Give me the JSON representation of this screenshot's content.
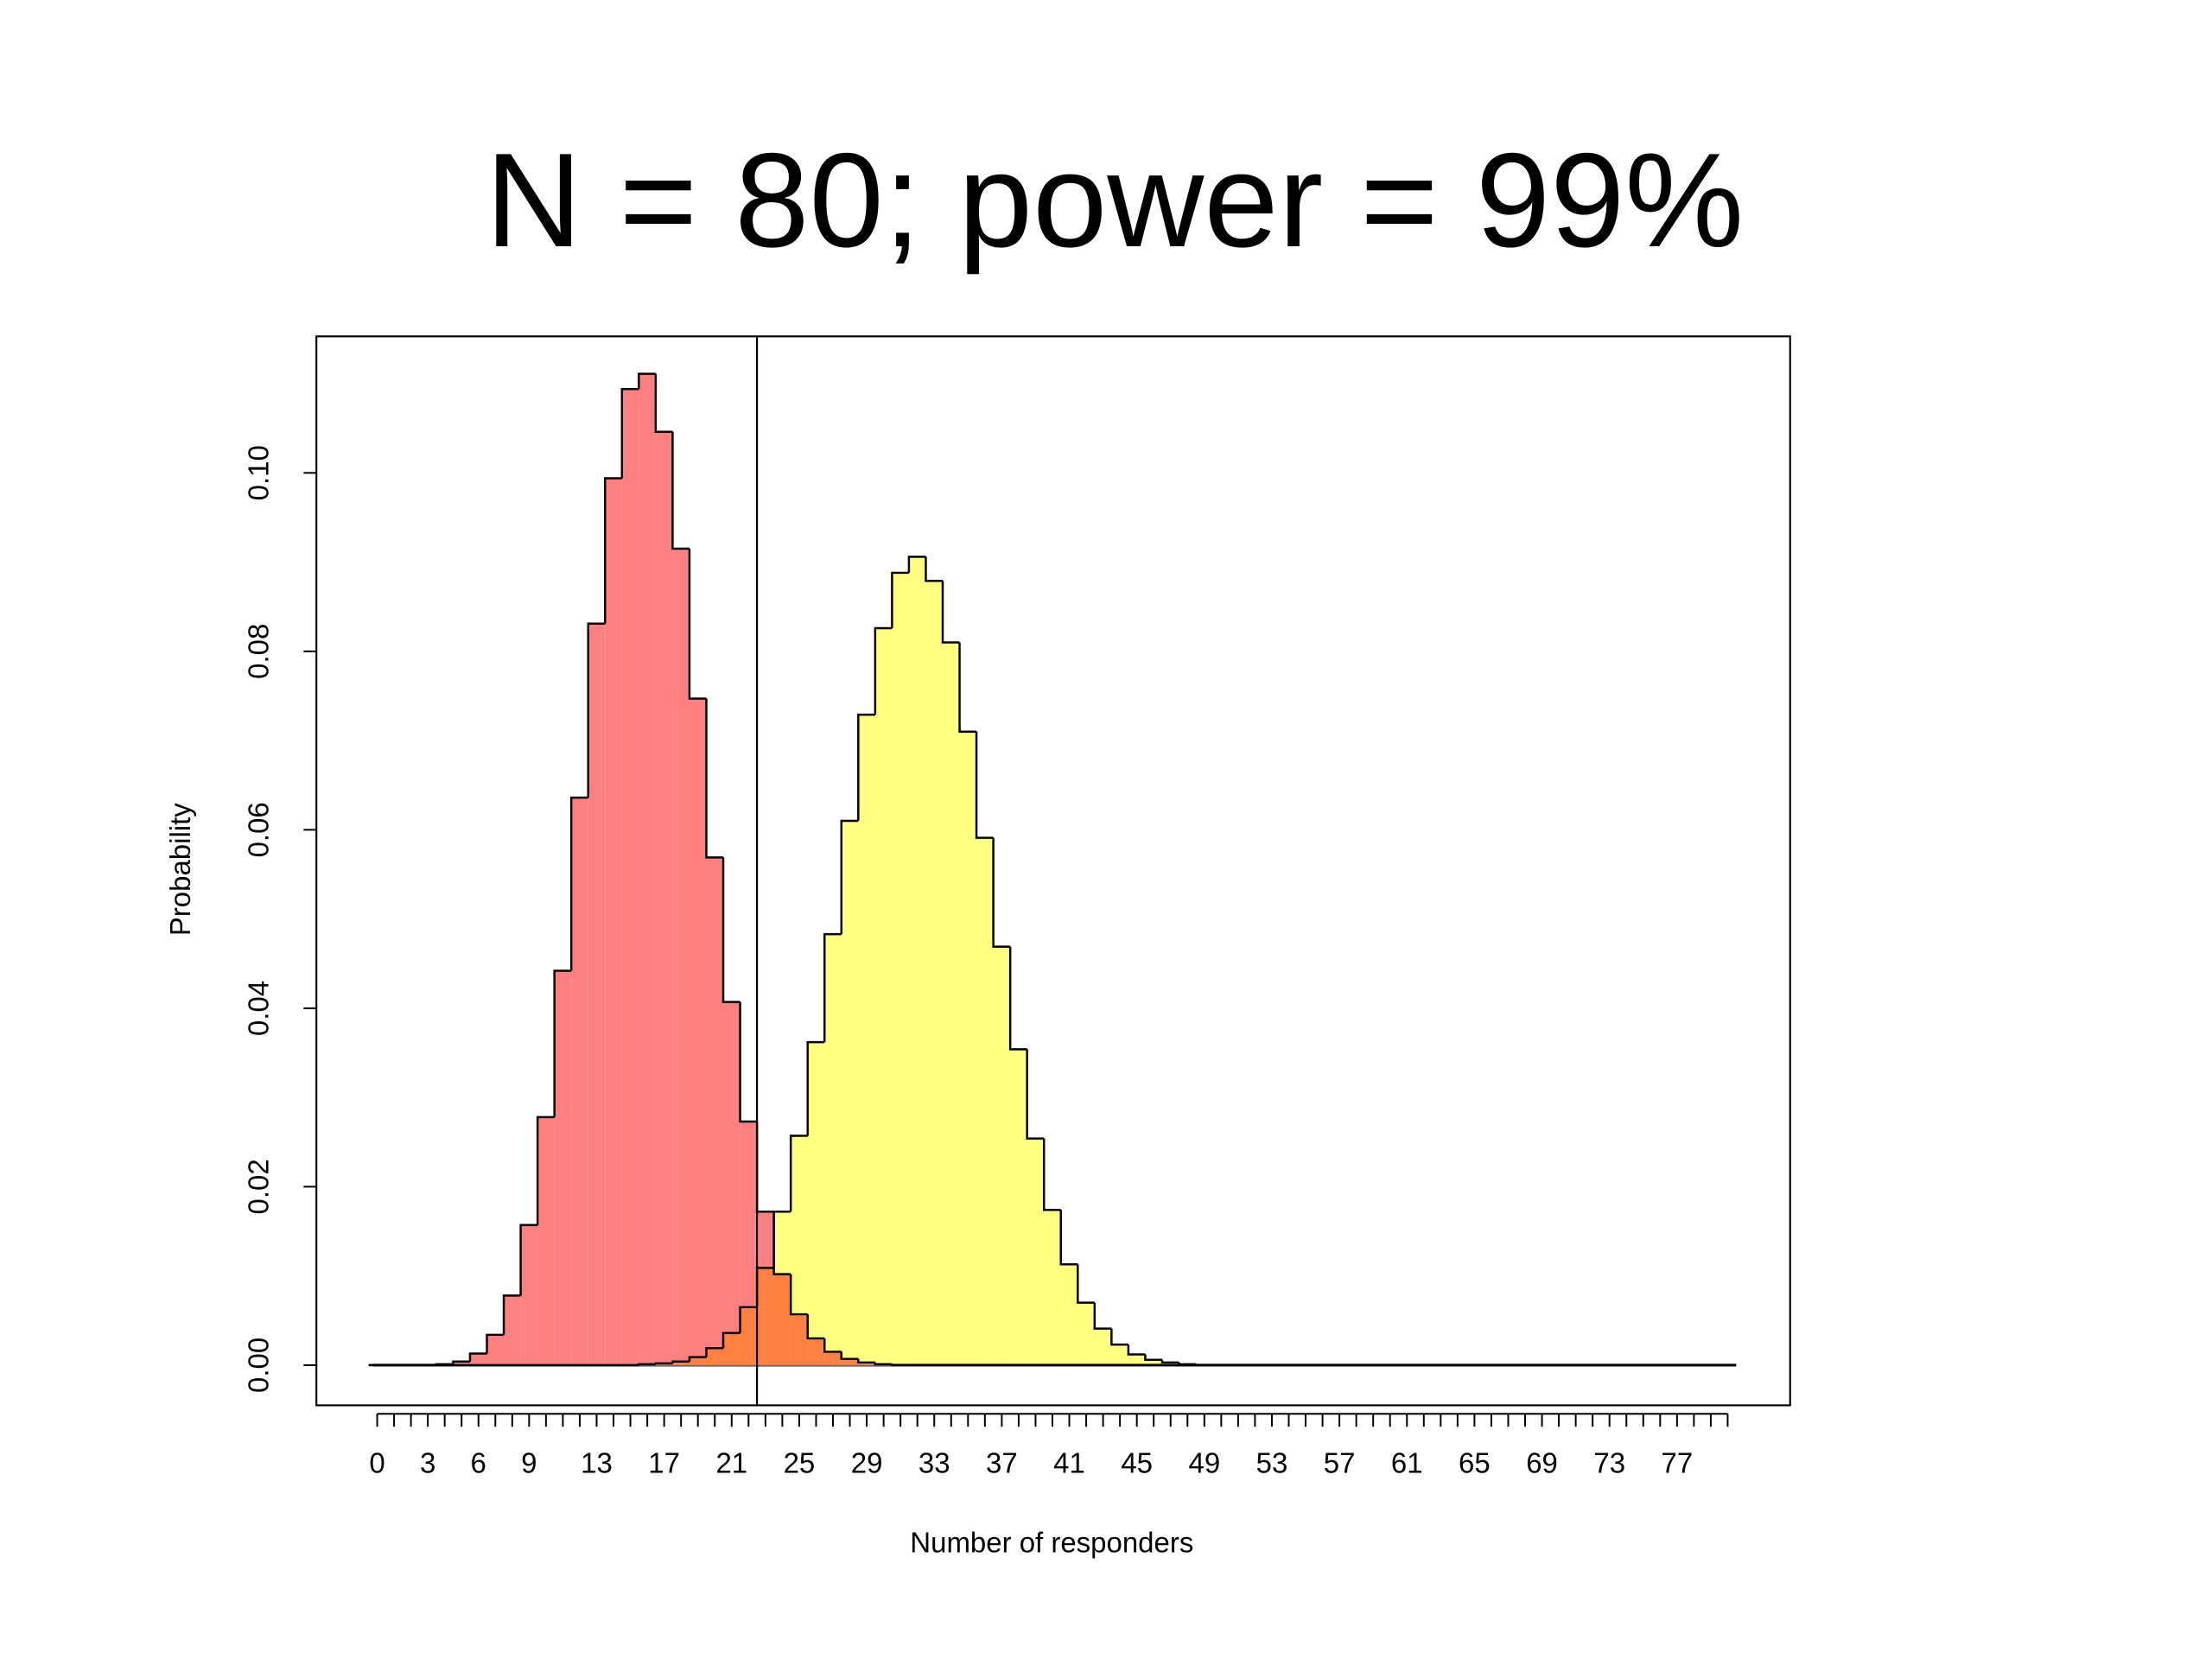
{
  "chart_data": {
    "type": "step-histogram",
    "title": "N = 80; power = 99%",
    "x_label": "Number of responders",
    "y_label": "Probability",
    "x": [
      0,
      1,
      2,
      3,
      4,
      5,
      6,
      7,
      8,
      9,
      10,
      11,
      12,
      13,
      14,
      15,
      16,
      17,
      18,
      19,
      20,
      21,
      22,
      23,
      24,
      25,
      26,
      27,
      28,
      29,
      30,
      31,
      32,
      33,
      34,
      35,
      36,
      37,
      38,
      39,
      40,
      41,
      42,
      43,
      44,
      45,
      46,
      47,
      48,
      49,
      50,
      51,
      52,
      53,
      54,
      55,
      56,
      57,
      58,
      59,
      60,
      61,
      62,
      63,
      64,
      65,
      66,
      67,
      68,
      69,
      70,
      71,
      72,
      73,
      74,
      75,
      76,
      77,
      78,
      79,
      80
    ],
    "series": [
      {
        "color": "#ff8080",
        "values": [
          0,
          0,
          0,
          0,
          0.0001,
          0.0004,
          0.0013,
          0.0034,
          0.0078,
          0.0157,
          0.0278,
          0.0442,
          0.0636,
          0.0831,
          0.0994,
          0.1094,
          0.1111,
          0.1046,
          0.0915,
          0.0747,
          0.0569,
          0.0407,
          0.0273,
          0.0172,
          0.0102,
          0.0057,
          0.003,
          0.0015,
          0.0007,
          0.0003,
          0.0001,
          0,
          0,
          0,
          0,
          0,
          0,
          0,
          0,
          0,
          0,
          0,
          0,
          0,
          0,
          0,
          0,
          0,
          0,
          0,
          0,
          0,
          0,
          0,
          0,
          0,
          0,
          0,
          0,
          0,
          0,
          0,
          0,
          0,
          0,
          0,
          0,
          0,
          0,
          0,
          0,
          0,
          0,
          0,
          0,
          0,
          0,
          0,
          0,
          0,
          0
        ]
      },
      {
        "color": "#ffff80",
        "values": [
          0,
          0,
          0,
          0,
          0,
          0,
          0,
          0,
          0,
          0,
          0,
          0,
          0,
          0,
          0,
          0,
          0.0001,
          0.0002,
          0.0004,
          0.0009,
          0.0019,
          0.0036,
          0.0065,
          0.0109,
          0.0172,
          0.0257,
          0.0362,
          0.0483,
          0.061,
          0.0729,
          0.0826,
          0.0888,
          0.0906,
          0.0879,
          0.081,
          0.071,
          0.0591,
          0.0469,
          0.0354,
          0.0254,
          0.0174,
          0.0113,
          0.007,
          0.0041,
          0.0023,
          0.0012,
          0.0006,
          0.0003,
          0.0001,
          0,
          0,
          0,
          0,
          0,
          0,
          0,
          0,
          0,
          0,
          0,
          0,
          0,
          0,
          0,
          0,
          0,
          0,
          0,
          0,
          0,
          0,
          0,
          0,
          0,
          0,
          0,
          0,
          0,
          0,
          0,
          0
        ]
      }
    ],
    "critical_value": 22.5,
    "xlim": [
      -3.6,
      83.7
    ],
    "ylim": [
      -0.0045,
      0.1153
    ],
    "xticks": [
      0,
      3,
      6,
      9,
      13,
      17,
      21,
      25,
      29,
      33,
      37,
      41,
      45,
      49,
      53,
      57,
      61,
      65,
      69,
      73,
      77
    ],
    "yticks": [
      {
        "value": 0,
        "label": "0.00"
      },
      {
        "value": 0.02,
        "label": "0.02"
      },
      {
        "value": 0.04,
        "label": "0.04"
      },
      {
        "value": 0.06,
        "label": "0.06"
      },
      {
        "value": 0.08,
        "label": "0.08"
      },
      {
        "value": 0.1,
        "label": "0.10"
      }
    ]
  }
}
